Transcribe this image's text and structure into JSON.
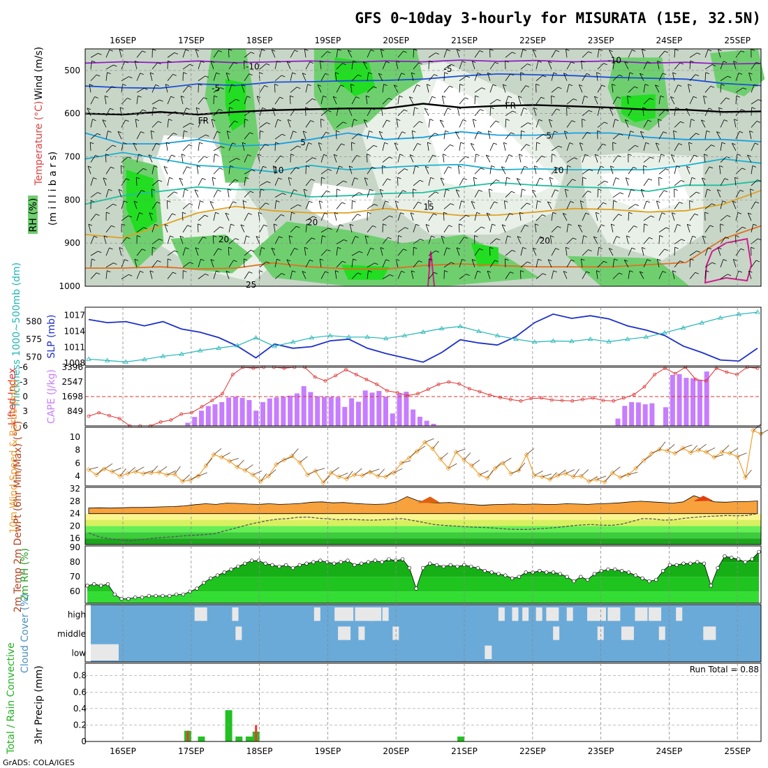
{
  "title": "GFS 0~10day 3-hourly for MISURATA (15E, 32.5N)",
  "footer": "GrADS: COLA/IGES",
  "dates": [
    "16SEP",
    "17SEP",
    "18SEP",
    "19SEP",
    "20SEP",
    "21SEP",
    "22SEP",
    "23SEP",
    "24SEP",
    "25SEP"
  ],
  "colors": {
    "rh_light": "#e8f0e8",
    "rh_mid": "#c8d6c8",
    "rh_green": "#6fcf6f",
    "rh_bright": "#22dd22",
    "cape_bar": "#c77dff",
    "lifted_index": "#e03030",
    "slp": "#1c2fc8",
    "thickness": "#22b5b5",
    "wind_speed": "#f0a030",
    "precip_total": "#22c022",
    "precip_conv": "#ff3030",
    "cloud_clear": "#6aaad8",
    "cloud_cover": "#e8e8e8"
  },
  "chart_data": [
    {
      "type": "heatmap",
      "name": "upper_air",
      "ylabel_parts": [
        "RH (%)",
        "Temperature (°C)",
        "Wind (m/s)",
        "(m i l l i b a r s)"
      ],
      "yticks": [
        500,
        600,
        700,
        800,
        900,
        1000
      ],
      "ylim": [
        1000,
        450
      ],
      "isotherm_labels": [
        {
          "text": "-10",
          "p": 490,
          "day": 2.3,
          "color": "#9020c0"
        },
        {
          "text": "-10",
          "p": 475,
          "day": 7.6,
          "color": "#9020c0"
        },
        {
          "text": "-5",
          "p": 495,
          "day": 5.2,
          "color": "#1c4fd8"
        },
        {
          "text": "-5",
          "p": 540,
          "day": 1.8,
          "color": "#1c4fd8"
        },
        {
          "text": "FR",
          "p": 615,
          "day": 1.6,
          "color": "#000000"
        },
        {
          "text": "FR",
          "p": 580,
          "day": 6.1,
          "color": "#000000"
        },
        {
          "text": "5",
          "p": 665,
          "day": 3.1,
          "color": "#18a0e0"
        },
        {
          "text": "5",
          "p": 650,
          "day": 6.7,
          "color": "#18a0e0"
        },
        {
          "text": "10",
          "p": 730,
          "day": 2.7,
          "color": "#18b0d0"
        },
        {
          "text": "10",
          "p": 730,
          "day": 6.8,
          "color": "#18b0d0"
        },
        {
          "text": "15",
          "p": 815,
          "day": 4.9,
          "color": "#20c0a0"
        },
        {
          "text": "20",
          "p": 850,
          "day": 3.2,
          "color": "#e0a020"
        },
        {
          "text": "20",
          "p": 890,
          "day": 1.9,
          "color": "#e0a020"
        },
        {
          "text": "20",
          "p": 893,
          "day": 6.6,
          "color": "#e0a020"
        },
        {
          "text": "25",
          "p": 995,
          "day": 2.3,
          "color": "#e07020"
        }
      ],
      "isotherms": [
        {
          "name": "-10",
          "color": "#9020c0",
          "p": [
            483,
            480,
            482,
            478,
            482,
            480,
            478,
            481,
            478,
            480,
            476,
            479,
            477,
            480,
            478,
            483,
            481,
            485,
            484
          ]
        },
        {
          "name": "-5",
          "color": "#1c4fd8",
          "p": [
            536,
            540,
            541,
            531,
            535,
            527,
            526,
            524,
            523,
            520,
            513,
            508,
            510,
            512,
            516,
            518,
            520,
            530,
            535
          ]
        },
        {
          "name": "FR",
          "color": "#000000",
          "p": [
            600,
            602,
            596,
            602,
            596,
            592,
            590,
            588,
            588,
            577,
            586,
            582,
            580,
            583,
            586,
            591,
            591,
            596,
            595
          ]
        },
        {
          "name": "5",
          "color": "#18a0e0",
          "p": [
            645,
            670,
            670,
            660,
            675,
            672,
            660,
            645,
            660,
            655,
            642,
            650,
            650,
            645,
            645,
            655,
            660,
            660,
            665
          ]
        },
        {
          "name": "10",
          "color": "#18b0d0",
          "p": [
            705,
            690,
            705,
            720,
            725,
            735,
            720,
            730,
            725,
            720,
            718,
            730,
            728,
            730,
            730,
            730,
            720,
            705,
            715
          ]
        },
        {
          "name": "15",
          "color": "#20c0a0",
          "p": [
            810,
            790,
            780,
            770,
            776,
            776,
            793,
            790,
            785,
            783,
            770,
            760,
            766,
            770,
            772,
            780,
            766,
            766,
            756
          ]
        },
        {
          "name": "20",
          "color": "#e0a020",
          "p": [
            880,
            888,
            860,
            830,
            815,
            825,
            830,
            830,
            820,
            828,
            836,
            835,
            828,
            820,
            822,
            828,
            825,
            810,
            778
          ]
        },
        {
          "name": "25",
          "color": "#e07020",
          "p": [
            958,
            958,
            955,
            960,
            958,
            946,
            955,
            960,
            960,
            952,
            948,
            952,
            955,
            955,
            955,
            950,
            945,
            890,
            860
          ]
        }
      ]
    },
    {
      "type": "line",
      "name": "slp_thickness",
      "ylabel_left": "Thickness 1000~500mb (dm)",
      "ylabel_right": "SLP (mb)",
      "yticks_left": [
        570,
        575,
        580
      ],
      "yticks_right": [
        1008,
        1011,
        1014,
        1017
      ],
      "series": [
        {
          "name": "SLP",
          "unit": "mb",
          "values": [
            1016.2,
            1015.6,
            1015.8,
            1015.0,
            1015.8,
            1014.4,
            1013.8,
            1012.8,
            1011.2,
            1009.0,
            1011.6,
            1010.8,
            1011.1,
            1012.2,
            1012.5,
            1010.8,
            1009.8,
            1009.0,
            1008.2,
            1010.0,
            1012.4,
            1011.8,
            1011.4,
            1013.0,
            1015.6,
            1017.2,
            1016.4,
            1016.9,
            1016.3,
            1015.0,
            1014.2,
            1013.2,
            1011.2,
            1010.0,
            1008.6,
            1008.4,
            1010.8
          ]
        },
        {
          "name": "Thickness",
          "unit": "dm",
          "values": [
            569.4,
            569.0,
            568.6,
            569.3,
            570.2,
            570.8,
            571.8,
            572.5,
            573.2,
            575.4,
            573.0,
            574.2,
            575.4,
            576.0,
            575.6,
            575.6,
            575.2,
            576.0,
            577.0,
            578.0,
            578.6,
            577.2,
            576.0,
            575.0,
            574.2,
            574.5,
            574.4,
            575.0,
            574.3,
            575.0,
            575.6,
            576.8,
            578.2,
            579.6,
            581.0,
            582.0,
            582.6
          ]
        }
      ]
    },
    {
      "type": "bar",
      "name": "cape_lifted_index",
      "ylabel_left": "Lifted Index",
      "ylabel_right": "CAPE (J/kg)",
      "yticks_left": [
        -6,
        -3,
        0,
        3,
        6
      ],
      "yticks_right": [
        849,
        1698,
        2547,
        3396
      ],
      "cape_values": [
        0,
        0,
        0,
        0,
        0,
        0,
        0,
        0,
        0,
        0,
        0,
        0,
        0,
        0,
        0,
        0,
        0,
        0,
        0,
        0,
        0,
        0,
        0,
        0,
        0,
        0,
        0,
        0,
        0,
        0,
        0,
        0,
        0,
        0,
        0,
        0,
        0,
        0,
        0,
        0,
        0,
        0,
        0,
        0,
        0,
        0,
        0,
        0,
        0,
        0,
        0,
        0,
        0,
        0,
        0,
        0,
        0,
        0,
        0,
        0,
        0,
        0,
        0,
        0,
        0,
        0,
        0,
        0,
        0,
        0,
        0,
        0,
        0,
        0,
        0,
        0,
        0,
        0,
        0,
        0,
        0
      ],
      "cape_nonzero": [
        {
          "day": 1.45,
          "v": 180
        },
        {
          "day": 1.55,
          "v": 520
        },
        {
          "day": 1.65,
          "v": 880
        },
        {
          "day": 1.75,
          "v": 1150
        },
        {
          "day": 1.85,
          "v": 1250
        },
        {
          "day": 1.95,
          "v": 1380
        },
        {
          "day": 2.05,
          "v": 1640
        },
        {
          "day": 2.15,
          "v": 1700
        },
        {
          "day": 2.25,
          "v": 1620
        },
        {
          "day": 2.35,
          "v": 1500
        },
        {
          "day": 2.45,
          "v": 880
        },
        {
          "day": 2.55,
          "v": 1380
        },
        {
          "day": 2.65,
          "v": 1590
        },
        {
          "day": 2.75,
          "v": 1650
        },
        {
          "day": 2.85,
          "v": 1700
        },
        {
          "day": 2.95,
          "v": 1750
        },
        {
          "day": 3.05,
          "v": 1880
        },
        {
          "day": 3.15,
          "v": 2300
        },
        {
          "day": 3.25,
          "v": 1960
        },
        {
          "day": 3.35,
          "v": 1720
        },
        {
          "day": 3.45,
          "v": 1680
        },
        {
          "day": 3.55,
          "v": 1680
        },
        {
          "day": 3.65,
          "v": 1660
        },
        {
          "day": 3.75,
          "v": 1100
        },
        {
          "day": 3.85,
          "v": 1600
        },
        {
          "day": 3.95,
          "v": 1400
        },
        {
          "day": 4.05,
          "v": 2050
        },
        {
          "day": 4.15,
          "v": 1930
        },
        {
          "day": 4.25,
          "v": 2020
        },
        {
          "day": 4.35,
          "v": 1700
        },
        {
          "day": 4.45,
          "v": 720
        },
        {
          "day": 4.55,
          "v": 1860
        },
        {
          "day": 4.65,
          "v": 1980
        },
        {
          "day": 4.75,
          "v": 950
        },
        {
          "day": 4.85,
          "v": 530
        },
        {
          "day": 4.95,
          "v": 300
        },
        {
          "day": 5.05,
          "v": 120
        },
        {
          "day": 7.75,
          "v": 420
        },
        {
          "day": 7.85,
          "v": 1160
        },
        {
          "day": 7.95,
          "v": 1380
        },
        {
          "day": 8.05,
          "v": 1360
        },
        {
          "day": 8.15,
          "v": 1250
        },
        {
          "day": 8.25,
          "v": 1310
        },
        {
          "day": 8.45,
          "v": 1080
        },
        {
          "day": 8.55,
          "v": 2950
        },
        {
          "day": 8.65,
          "v": 3000
        },
        {
          "day": 8.75,
          "v": 2780
        },
        {
          "day": 8.85,
          "v": 2760
        },
        {
          "day": 8.95,
          "v": 2660
        },
        {
          "day": 9.05,
          "v": 3150
        }
      ],
      "lifted_index": [
        4.0,
        3.3,
        3.9,
        4.5,
        6.0,
        6.6,
        6.0,
        5.2,
        4.8,
        3.6,
        3.3,
        2.1,
        0.8,
        -0.6,
        -4.5,
        -6.0,
        -5.8,
        -6.2,
        -6.0,
        -5.8,
        -6.0,
        -6.2,
        -4.0,
        -3.2,
        -4.3,
        -5.5,
        -4.5,
        -3.5,
        -2.5,
        -1.2,
        -0.8,
        -0.2,
        -0.6,
        -1.5,
        -2.5,
        -3.0,
        -2.6,
        -1.6,
        -1.0,
        -0.3,
        0.2,
        0.6,
        0.9,
        0.4,
        0.3,
        0.7,
        0.8,
        0.9,
        0.6,
        0.3,
        0.8,
        0.9,
        0.3,
        -0.4,
        -2.0,
        -4.5,
        -5.8,
        -4.7,
        -6.0,
        -3.5,
        -3.2,
        -5.8,
        -5.0,
        -4.5,
        -6.0,
        -5.8
      ]
    },
    {
      "type": "line",
      "name": "wind10m",
      "ylabel": "10m Wind Speed & Barbs (m/s)",
      "yticks": [
        4,
        6,
        8,
        10
      ],
      "values": [
        5.0,
        4.2,
        5.1,
        4.7,
        4.0,
        4.4,
        4.7,
        4.4,
        4.5,
        4.6,
        4.2,
        4.3,
        3.2,
        3.4,
        4.0,
        5.6,
        7.3,
        6.9,
        6.3,
        5.4,
        4.9,
        4.2,
        3.2,
        4.0,
        5.8,
        6.5,
        7.1,
        6.1,
        4.2,
        4.8,
        3.0,
        4.5,
        3.9,
        3.6,
        4.2,
        4.1,
        4.6,
        4.0,
        3.9,
        4.5,
        6.0,
        6.8,
        7.8,
        9.2,
        8.2,
        6.6,
        5.2,
        7.7,
        6.5,
        5.6,
        4.2,
        3.7,
        5.2,
        6.0,
        4.4,
        4.9,
        7.3,
        4.1,
        3.9,
        3.5,
        4.1,
        4.4,
        3.9,
        4.0,
        3.2,
        3.5,
        3.1,
        4.5,
        3.8,
        4.2,
        5.2,
        6.4,
        7.5,
        8.1,
        7.9,
        7.5,
        8.3,
        7.6,
        8.0,
        7.7,
        6.9,
        7.7,
        7.5,
        7.0,
        3.8,
        11.0,
        10.5
      ]
    },
    {
      "type": "area",
      "name": "temp2m",
      "ylabel": "2m Temp 2m DewPt (6hr Min/Max) (°C)",
      "yticks": [
        16,
        20,
        24,
        28,
        32
      ],
      "temp_values": [
        25.8,
        25.9,
        25.8,
        25.9,
        26.0,
        26.0,
        26.1,
        26.2,
        26.3,
        26.5,
        26.9,
        27.2,
        27.0,
        27.4,
        27.3,
        27.1,
        27.0,
        27.2,
        27.0,
        27.1,
        27.3,
        27.7,
        27.8,
        27.5,
        27.6,
        27.3,
        27.1,
        27.0,
        27.1,
        27.8,
        29.5,
        28.2,
        27.6,
        27.5,
        27.6,
        27.2,
        27.0,
        26.7,
        26.9,
        27.0,
        27.1,
        27.0,
        27.1,
        27.0,
        27.0,
        27.2,
        27.1,
        27.0,
        27.2,
        27.3,
        27.5,
        27.8,
        28.0,
        27.8,
        27.6,
        27.4,
        27.8,
        29.8,
        28.6,
        27.8,
        27.7,
        27.9,
        27.9,
        28.1
      ],
      "dewpoint_values": [
        17.8,
        16.5,
        15.9,
        15.5,
        15.2,
        15.6,
        16.0,
        16.3,
        16.5,
        16.8,
        17.0,
        17.2,
        17.5,
        18.4,
        19.3,
        20.2,
        21.0,
        21.7,
        22.2,
        22.4,
        22.8,
        22.9,
        22.5,
        22.3,
        22.0,
        22.2,
        22.0,
        21.9,
        22.0,
        22.2,
        22.4,
        21.8,
        21.2,
        20.5,
        20.2,
        20.0,
        19.8,
        19.6,
        19.5,
        19.3,
        19.0,
        18.9,
        18.9,
        19.1,
        19.3,
        19.6,
        20.0,
        20.3,
        20.5,
        20.3,
        20.2,
        20.6,
        21.5,
        22.4,
        22.3,
        21.9,
        22.0,
        22.5,
        22.8,
        23.1,
        23.2,
        23.4,
        23.3,
        23.4,
        24.0
      ]
    },
    {
      "type": "area",
      "name": "rh2m",
      "ylabel": "2m RH (%)",
      "yticks": [
        60,
        70,
        80,
        90
      ],
      "values": [
        64,
        65,
        64,
        65,
        58,
        55,
        55,
        56,
        56,
        57,
        57,
        57,
        57,
        58,
        58,
        60,
        62,
        66,
        69,
        71,
        73,
        75,
        77,
        79,
        81,
        81,
        79,
        78,
        77,
        78,
        76,
        78,
        79,
        80,
        81,
        80,
        79,
        80,
        81,
        78,
        79,
        80,
        81,
        80,
        82,
        81,
        82,
        76,
        62,
        76,
        79,
        78,
        77,
        78,
        77,
        78,
        77,
        76,
        74,
        73,
        72,
        71,
        69,
        70,
        73,
        73,
        74,
        73,
        73,
        72,
        70,
        67,
        70,
        68,
        72,
        74,
        75,
        75,
        74,
        73,
        71,
        69,
        67,
        68,
        74,
        78,
        78,
        79,
        79,
        80,
        79,
        64,
        76,
        84,
        83,
        82,
        80,
        82,
        87
      ]
    },
    {
      "type": "heatmap",
      "name": "cloud_cover",
      "ylabel": "Cloud Cover (%)",
      "levels": [
        "high",
        "middle",
        "low"
      ]
    },
    {
      "type": "bar",
      "name": "precip",
      "ylabel_left": "Total / Rain Convective",
      "ylabel_right": "3hr Precip (mm)",
      "yticks": [
        0,
        0.2,
        0.4,
        0.6,
        0.8
      ],
      "run_total": "Run Total = 0.88",
      "bars": [
        {
          "day": 1.45,
          "total": 0.13,
          "conv": 0.13
        },
        {
          "day": 1.65,
          "total": 0.06,
          "conv": 0.0
        },
        {
          "day": 2.05,
          "total": 0.38,
          "conv": 0.0
        },
        {
          "day": 2.2,
          "total": 0.06,
          "conv": 0.0
        },
        {
          "day": 2.35,
          "total": 0.06,
          "conv": 0.0
        },
        {
          "day": 2.45,
          "total": 0.12,
          "conv": 0.2
        },
        {
          "day": 5.45,
          "total": 0.06,
          "conv": 0.0
        }
      ]
    }
  ]
}
